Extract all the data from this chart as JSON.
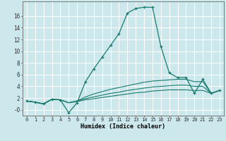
{
  "xlabel": "Humidex (Indice chaleur)",
  "background_color": "#cce8ed",
  "grid_color": "#ffffff",
  "line_color": "#1a7a6e",
  "x_values": [
    0,
    1,
    2,
    3,
    4,
    5,
    6,
    7,
    8,
    9,
    10,
    11,
    12,
    13,
    14,
    15,
    16,
    17,
    18,
    19,
    20,
    21,
    22,
    23
  ],
  "main_line": [
    1.5,
    1.3,
    1.0,
    1.8,
    1.7,
    -0.5,
    1.2,
    4.8,
    7.0,
    9.0,
    11.0,
    13.0,
    16.5,
    17.3,
    17.5,
    17.5,
    10.8,
    6.3,
    5.5,
    5.5,
    2.8,
    5.2,
    2.8,
    3.3
  ],
  "line2": [
    1.5,
    1.3,
    1.0,
    1.8,
    1.7,
    1.2,
    1.5,
    2.2,
    2.7,
    3.1,
    3.5,
    3.8,
    4.1,
    4.4,
    4.7,
    4.9,
    5.0,
    5.1,
    5.2,
    5.2,
    4.8,
    4.8,
    2.8,
    3.3
  ],
  "line3": [
    1.5,
    1.3,
    1.0,
    1.8,
    1.7,
    1.2,
    1.5,
    1.9,
    2.2,
    2.5,
    2.8,
    3.0,
    3.3,
    3.5,
    3.7,
    3.9,
    4.0,
    4.1,
    4.2,
    4.2,
    4.0,
    4.0,
    2.8,
    3.3
  ],
  "line4": [
    1.5,
    1.3,
    1.0,
    1.8,
    1.7,
    1.2,
    1.4,
    1.7,
    1.9,
    2.1,
    2.3,
    2.5,
    2.7,
    2.9,
    3.0,
    3.2,
    3.3,
    3.4,
    3.4,
    3.4,
    3.3,
    3.3,
    2.8,
    3.3
  ],
  "ylim": [
    -1.0,
    18.5
  ],
  "xlim": [
    -0.5,
    23.5
  ],
  "yticks": [
    0,
    2,
    4,
    6,
    8,
    10,
    12,
    14,
    16
  ],
  "ytick_labels": [
    "-0",
    "2",
    "4",
    "6",
    "8",
    "10",
    "12",
    "14",
    "16"
  ],
  "xticks": [
    0,
    1,
    2,
    3,
    4,
    5,
    6,
    7,
    8,
    9,
    10,
    11,
    12,
    13,
    14,
    15,
    16,
    17,
    18,
    19,
    20,
    21,
    22,
    23
  ]
}
